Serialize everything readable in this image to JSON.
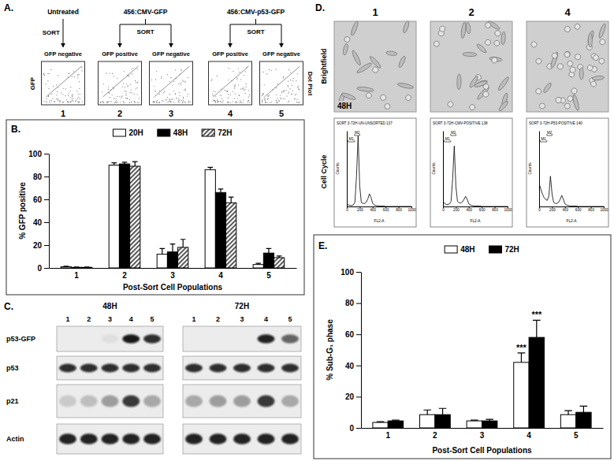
{
  "chart_data": [
    {
      "type": "bar",
      "annotations": [
        {
          "text": "B."
        }
      ],
      "categories": [
        "1",
        "2",
        "3",
        "4",
        "5"
      ],
      "series": [
        {
          "name": "20H",
          "color": "#ffffff",
          "values": [
            1,
            90,
            12,
            86,
            3
          ],
          "errors": [
            0.5,
            2,
            5,
            2,
            1
          ]
        },
        {
          "name": "48H",
          "color": "#000000",
          "values": [
            0.5,
            91,
            14,
            66,
            13
          ],
          "errors": [
            0.3,
            1.5,
            7,
            3,
            4
          ]
        },
        {
          "name": "72H",
          "color": "#ffffff",
          "line_style": "hatched",
          "values": [
            0.5,
            89,
            18,
            57,
            9
          ],
          "errors": [
            0.3,
            4,
            7,
            5,
            1.5
          ]
        }
      ],
      "x_label": "Post-Sort Cell Populations",
      "y_label": "% GFP positive",
      "ylim": [
        0,
        100
      ],
      "yticks": [
        0,
        20,
        40,
        60,
        80,
        100
      ],
      "legend": "top"
    },
    {
      "type": "bar",
      "annotations": [
        {
          "text": "E."
        },
        {
          "text": "***",
          "category": "4",
          "series": "48H"
        },
        {
          "text": "***",
          "category": "4",
          "series": "72H"
        }
      ],
      "categories": [
        "1",
        "2",
        "3",
        "4",
        "5"
      ],
      "series": [
        {
          "name": "48H",
          "color": "#ffffff",
          "values": [
            3.5,
            8.5,
            4.5,
            42,
            8.5
          ],
          "errors": [
            0.5,
            3,
            0.5,
            6,
            2.5
          ]
        },
        {
          "name": "72H",
          "color": "#000000",
          "values": [
            4.5,
            8.5,
            4.5,
            58,
            10
          ],
          "errors": [
            0.5,
            4,
            1,
            11,
            4
          ]
        }
      ],
      "x_label": "Post-Sort Cell Populations",
      "y_label": "% Sub-G₁ phase",
      "ylim": [
        0,
        100
      ],
      "yticks": [
        0,
        20,
        40,
        60,
        80,
        100
      ],
      "legend": "top"
    },
    {
      "type": "line",
      "title": "SORT 3-72H-UN-UNSORTED 137",
      "x_label": "FL2-A",
      "y_label": "Counts",
      "x": [
        0,
        25,
        50,
        75,
        100,
        125,
        150,
        175,
        200,
        225,
        250,
        275,
        300,
        325,
        350,
        375,
        400,
        425,
        450,
        475,
        500,
        525,
        550,
        575,
        600,
        625,
        650,
        675,
        700,
        725,
        750,
        775,
        800,
        825,
        850,
        875,
        900,
        925,
        950,
        975,
        1000
      ],
      "values": [
        5,
        3,
        2,
        2,
        3,
        8,
        60,
        140,
        40,
        8,
        6,
        6,
        8,
        15,
        25,
        18,
        6,
        3,
        2,
        1,
        1,
        1,
        1,
        1,
        0,
        0,
        0,
        0,
        0,
        0,
        0,
        0,
        0,
        0,
        0,
        0,
        0,
        0,
        0,
        0,
        0
      ],
      "xlim": [
        0,
        1000
      ],
      "xticks": [
        0,
        200,
        400,
        600,
        800,
        1000
      ],
      "ylim": [
        0,
        150
      ],
      "tick_labels": "x",
      "gates": [
        {
          "label": "M1",
          "range": [
            20,
            120
          ]
        },
        {
          "label": "M2",
          "range": [
            120,
            200
          ]
        }
      ]
    },
    {
      "type": "line",
      "title": "SORT 3-72H-CMV-POSITIVE 138",
      "x_label": "FL2-A",
      "y_label": "Counts",
      "x": [
        0,
        25,
        50,
        75,
        100,
        125,
        150,
        175,
        200,
        225,
        250,
        275,
        300,
        325,
        350,
        375,
        400,
        425,
        450,
        475,
        500,
        525,
        550,
        575,
        600,
        625,
        650,
        675,
        700,
        725,
        750,
        775,
        800,
        825,
        850,
        875,
        900,
        925,
        950,
        975,
        1000
      ],
      "values": [
        10,
        6,
        4,
        4,
        5,
        10,
        55,
        120,
        40,
        10,
        7,
        7,
        9,
        14,
        20,
        14,
        5,
        3,
        2,
        1,
        1,
        1,
        1,
        1,
        0,
        0,
        0,
        0,
        0,
        0,
        0,
        0,
        0,
        0,
        0,
        0,
        0,
        0,
        0,
        0,
        0
      ],
      "xlim": [
        0,
        1000
      ],
      "xticks": [
        0,
        200,
        400,
        600,
        800,
        1000
      ],
      "ylim": [
        0,
        150
      ],
      "tick_labels": "x",
      "gates": [
        {
          "label": "M1",
          "range": [
            20,
            120
          ]
        },
        {
          "label": "M2",
          "range": [
            120,
            200
          ]
        }
      ]
    },
    {
      "type": "line",
      "title": "SORT 3-72H-P53-POSITIVE 140",
      "x_label": "FL2-A",
      "y_label": "Counts",
      "x": [
        0,
        25,
        50,
        75,
        100,
        125,
        150,
        175,
        200,
        225,
        250,
        275,
        300,
        325,
        350,
        375,
        400,
        425,
        450,
        475,
        500,
        525,
        550,
        575,
        600,
        625,
        650,
        675,
        700,
        725,
        750,
        775,
        800,
        825,
        850,
        875,
        900,
        925,
        950,
        975,
        1000
      ],
      "values": [
        45,
        35,
        25,
        18,
        14,
        12,
        20,
        60,
        25,
        8,
        6,
        6,
        8,
        14,
        22,
        14,
        5,
        3,
        2,
        1,
        1,
        1,
        1,
        1,
        0,
        0,
        0,
        0,
        0,
        0,
        0,
        0,
        0,
        0,
        0,
        0,
        0,
        0,
        0,
        0,
        0
      ],
      "xlim": [
        0,
        1000
      ],
      "xticks": [
        0,
        200,
        400,
        600,
        800,
        1000
      ],
      "ylim": [
        0,
        150
      ],
      "tick_labels": "x",
      "gates": [
        {
          "label": "M1",
          "range": [
            20,
            120
          ]
        },
        {
          "label": "M2",
          "range": [
            120,
            200
          ]
        }
      ]
    }
  ],
  "panel_a": {
    "letter": "A.",
    "action": "SORT",
    "y_label": "GFP",
    "side_label": "Dot Plot",
    "groups": [
      {
        "label": "Untreated",
        "populations": [
          {
            "number": "1",
            "label": "GFP negative"
          }
        ]
      },
      {
        "label": "456:CMV-GFP",
        "populations": [
          {
            "number": "2",
            "label": "GFP positive"
          },
          {
            "number": "3",
            "label": "GFP negative"
          }
        ]
      },
      {
        "label": "456:CMV-p53-GFP",
        "populations": [
          {
            "number": "4",
            "label": "GFP positive"
          },
          {
            "number": "5",
            "label": "GFP negative"
          }
        ]
      }
    ]
  },
  "panel_c": {
    "letter": "C.",
    "blots": [
      {
        "label": "48H",
        "lanes": [
          "1",
          "2",
          "3",
          "4",
          "5"
        ]
      },
      {
        "label": "72H",
        "lanes": [
          "1",
          "2",
          "3",
          "4",
          "5"
        ]
      }
    ],
    "proteins": [
      {
        "label": "p53-GFP",
        "intensity": [
          [
            0,
            0,
            0.05,
            0.95,
            0.85
          ],
          [
            0,
            0,
            0,
            0.9,
            0.6
          ]
        ]
      },
      {
        "label": "p53",
        "intensity": [
          [
            0.85,
            0.85,
            0.85,
            0.85,
            0.85
          ],
          [
            0.85,
            0.85,
            0.85,
            0.85,
            0.85
          ]
        ]
      },
      {
        "label": "p21",
        "intensity": [
          [
            0.15,
            0.2,
            0.35,
            0.8,
            0.3
          ],
          [
            0.3,
            0.35,
            0.35,
            0.8,
            0.3
          ]
        ]
      },
      {
        "label": "Actin",
        "intensity": [
          [
            0.9,
            0.9,
            0.9,
            0.9,
            0.9
          ],
          [
            0.9,
            0.9,
            0.9,
            0.9,
            0.9
          ]
        ]
      }
    ]
  },
  "panel_d": {
    "letter": "D.",
    "columns": [
      "1",
      "2",
      "4"
    ],
    "rows": [
      "Brightfield",
      "Cell Cycle"
    ],
    "time_label": "48H"
  }
}
